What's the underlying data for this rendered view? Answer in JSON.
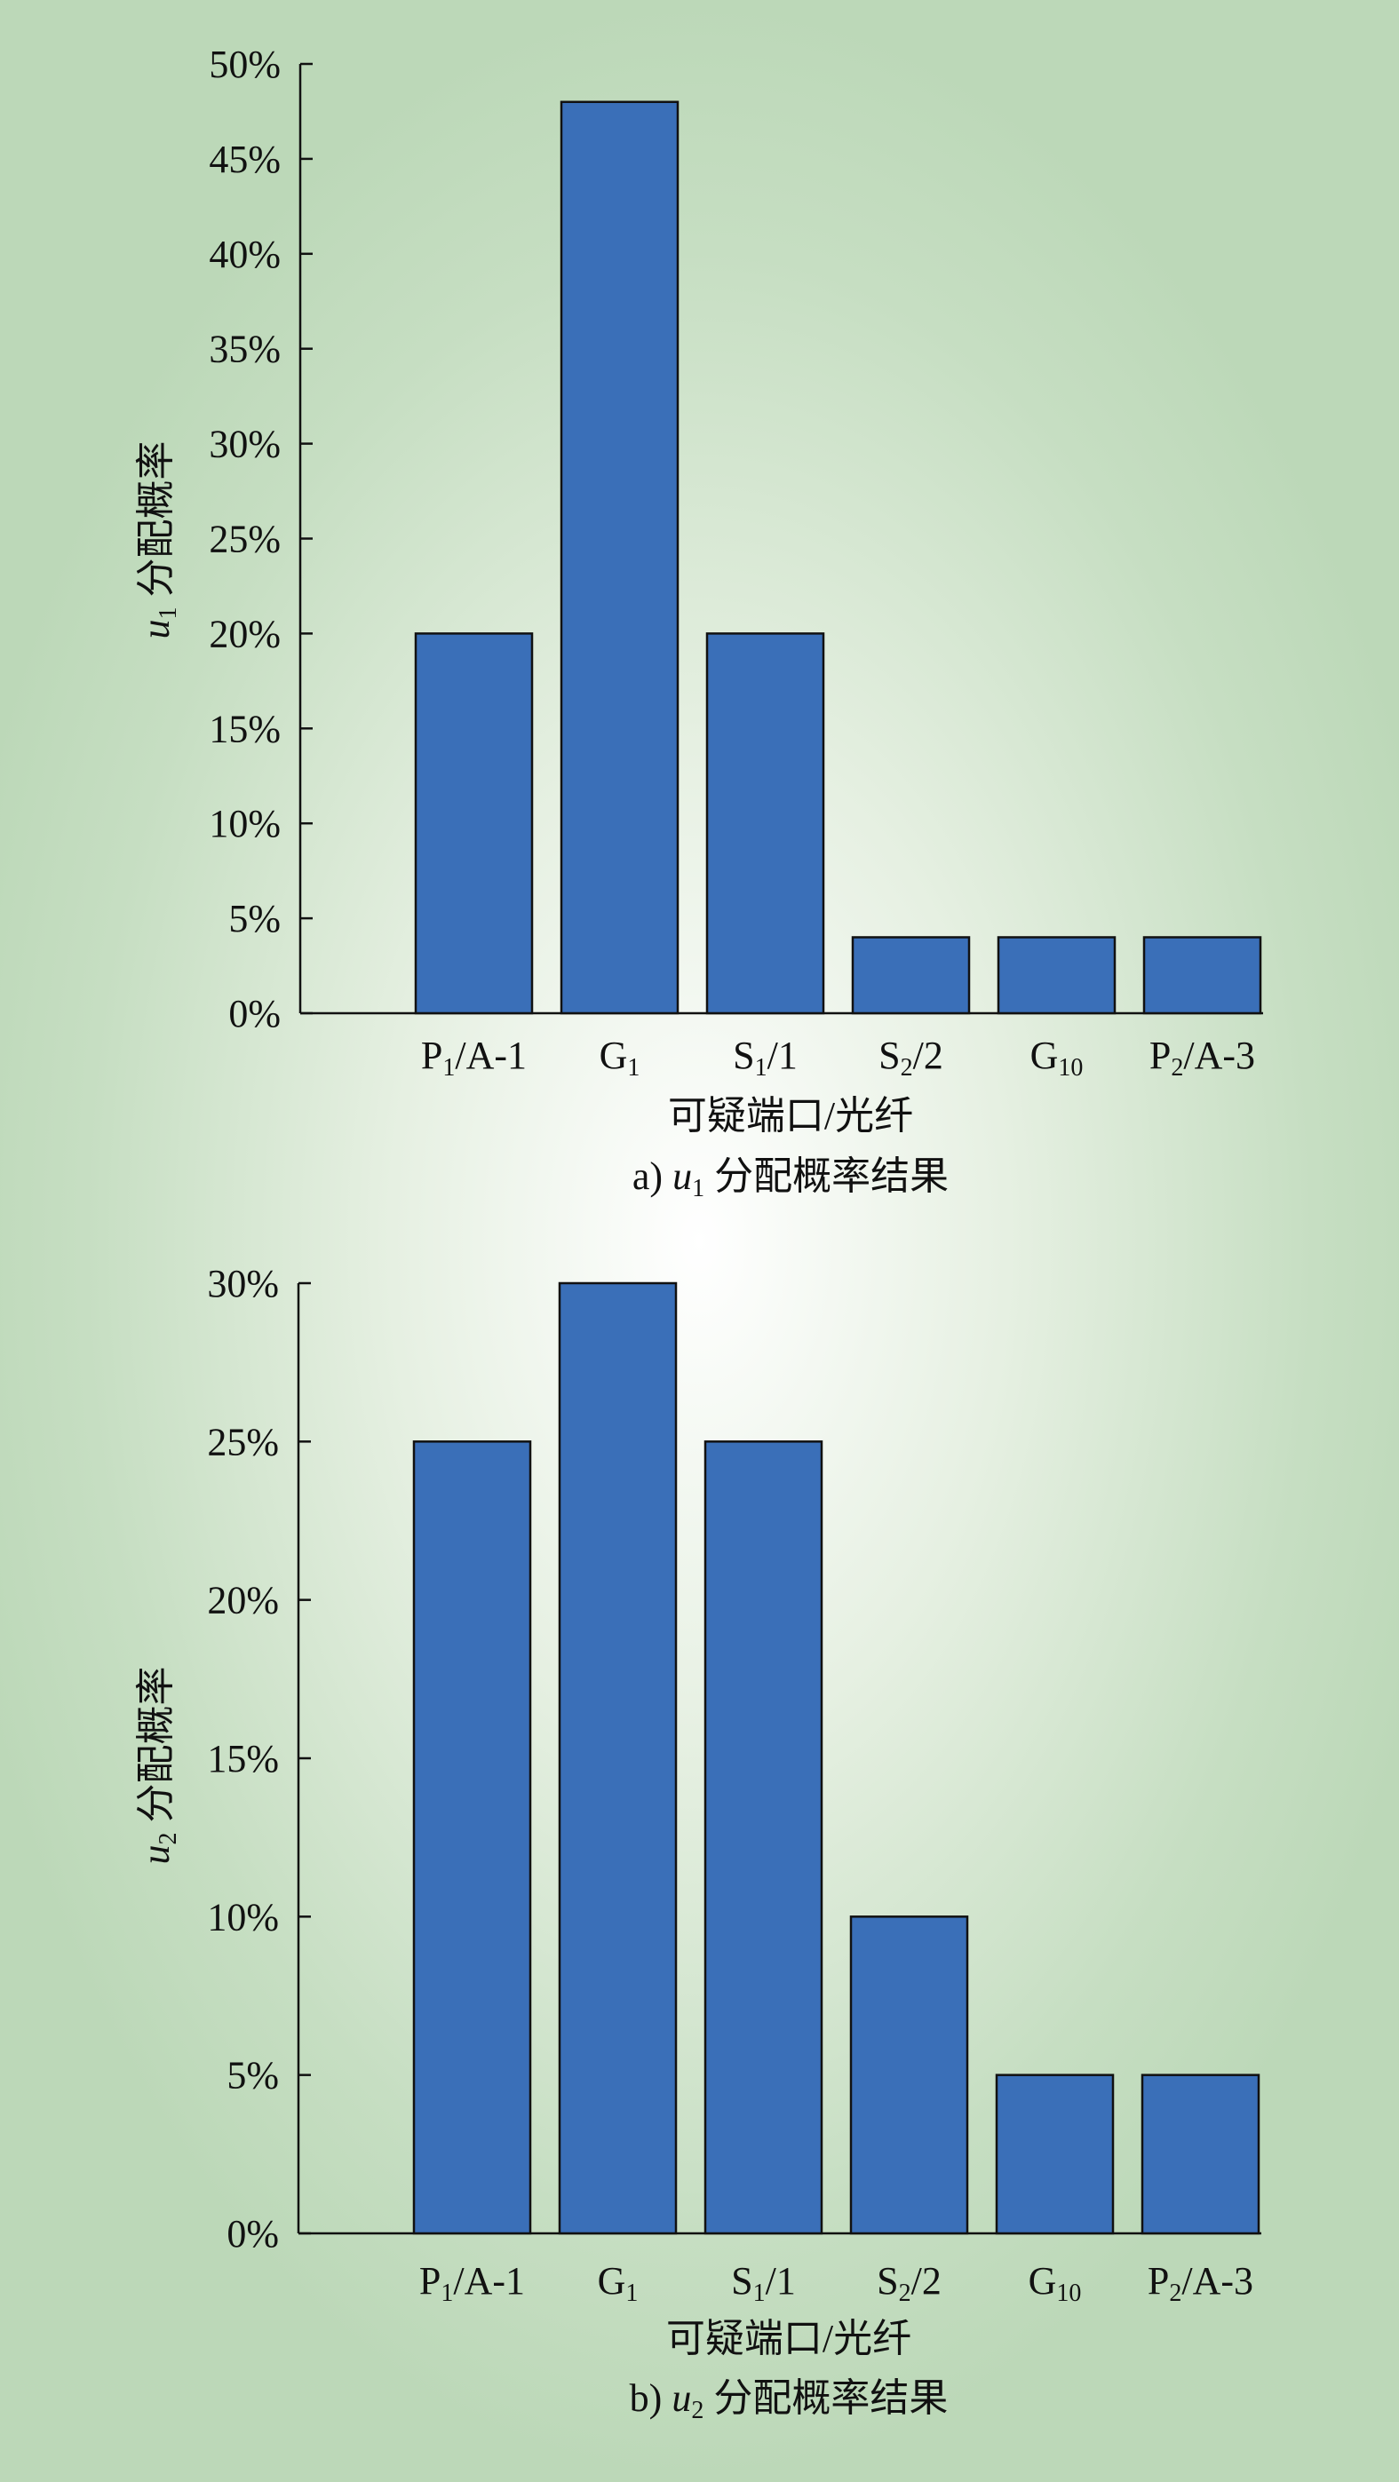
{
  "colors": {
    "bar": "#3a6fb8",
    "bar_stroke": "#111111",
    "axis": "#111111"
  },
  "chart_data": [
    {
      "type": "bar",
      "categories": [
        {
          "base": "P",
          "sub": "1",
          "suffix": "/A-1"
        },
        {
          "base": "G",
          "sub": "1",
          "suffix": ""
        },
        {
          "base": "S",
          "sub": "1",
          "suffix": "/1"
        },
        {
          "base": "S",
          "sub": "2",
          "suffix": "/2"
        },
        {
          "base": "G",
          "sub": "10",
          "suffix": ""
        },
        {
          "base": "P",
          "sub": "2",
          "suffix": "/A-3"
        }
      ],
      "values": [
        20,
        48,
        20,
        4,
        4,
        4
      ],
      "ylim": [
        0,
        50
      ],
      "yticks": [
        0,
        5,
        10,
        15,
        20,
        25,
        30,
        35,
        40,
        45,
        50
      ],
      "tick_suffix": "%",
      "xlabel": "可疑端口/光纤",
      "ylabel": {
        "var": "u",
        "sub": "1",
        "text": " 分配概率"
      },
      "caption": {
        "prefix": "a) ",
        "var": "u",
        "sub": "1",
        "text": " 分配概率结果"
      }
    },
    {
      "type": "bar",
      "categories": [
        {
          "base": "P",
          "sub": "1",
          "suffix": "/A-1"
        },
        {
          "base": "G",
          "sub": "1",
          "suffix": ""
        },
        {
          "base": "S",
          "sub": "1",
          "suffix": "/1"
        },
        {
          "base": "S",
          "sub": "2",
          "suffix": "/2"
        },
        {
          "base": "G",
          "sub": "10",
          "suffix": ""
        },
        {
          "base": "P",
          "sub": "2",
          "suffix": "/A-3"
        }
      ],
      "values": [
        25,
        30,
        25,
        10,
        5,
        5
      ],
      "ylim": [
        0,
        30
      ],
      "yticks": [
        0,
        5,
        10,
        15,
        20,
        25,
        30
      ],
      "tick_suffix": "%",
      "xlabel": "可疑端口/光纤",
      "ylabel": {
        "var": "u",
        "sub": "2",
        "text": " 分配概率"
      },
      "caption": {
        "prefix": "b) ",
        "var": "u",
        "sub": "2",
        "text": " 分配概率结果"
      }
    }
  ]
}
